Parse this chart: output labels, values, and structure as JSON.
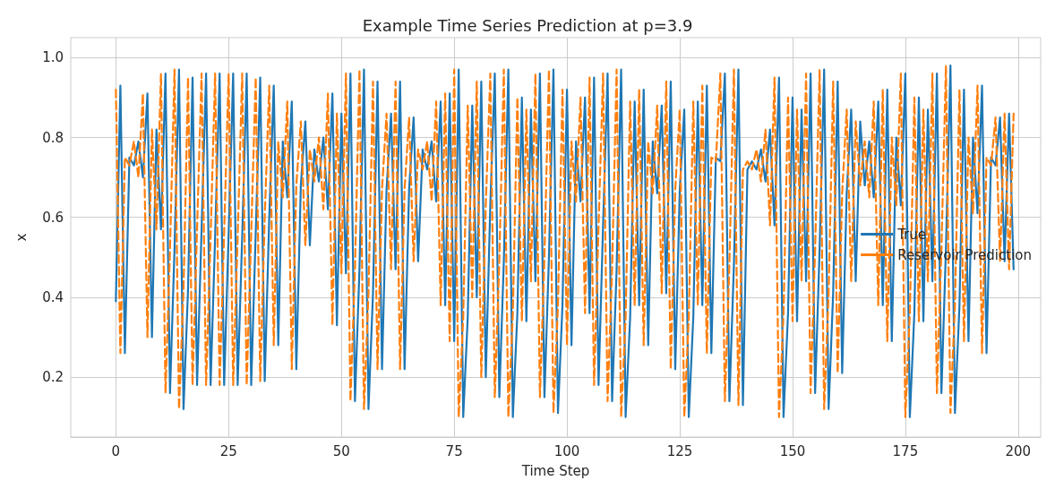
{
  "chart_data": {
    "type": "line",
    "title": "Example Time Series Prediction at p=3.9",
    "xlabel": "Time Step",
    "ylabel": "x",
    "x": [
      0,
      1,
      2,
      3,
      4,
      5,
      6,
      7,
      8,
      9,
      10,
      11,
      12,
      13,
      14,
      15,
      16,
      17,
      18,
      19,
      20,
      21,
      22,
      23,
      24,
      25,
      26,
      27,
      28,
      29,
      30,
      31,
      32,
      33,
      34,
      35,
      36,
      37,
      38,
      39,
      40,
      41,
      42,
      43,
      44,
      45,
      46,
      47,
      48,
      49,
      50,
      51,
      52,
      53,
      54,
      55,
      56,
      57,
      58,
      59,
      60,
      61,
      62,
      63,
      64,
      65,
      66,
      67,
      68,
      69,
      70,
      71,
      72,
      73,
      74,
      75,
      76,
      77,
      78,
      79,
      80,
      81,
      82,
      83,
      84,
      85,
      86,
      87,
      88,
      89,
      90,
      91,
      92,
      93,
      94,
      95,
      96,
      97,
      98,
      99,
      100,
      101,
      102,
      103,
      104,
      105,
      106,
      107,
      108,
      109,
      110,
      111,
      112,
      113,
      114,
      115,
      116,
      117,
      118,
      119,
      120,
      121,
      122,
      123,
      124,
      125,
      126,
      127,
      128,
      129,
      130,
      131,
      132,
      133,
      134,
      135,
      136,
      137,
      138,
      139,
      140,
      141,
      142,
      143,
      144,
      145,
      146,
      147,
      148,
      149,
      150,
      151,
      152,
      153,
      154,
      155,
      156,
      157,
      158,
      159,
      160,
      161,
      162,
      163,
      164,
      165,
      166,
      167,
      168,
      169,
      170,
      171,
      172,
      173,
      174,
      175,
      176,
      177,
      178,
      179,
      180,
      181,
      182,
      183,
      184,
      185,
      186,
      187,
      188,
      189,
      190,
      191,
      192,
      193,
      194,
      195,
      196,
      197,
      198,
      199
    ],
    "series": [
      {
        "name": "True",
        "color": "#1f77b4",
        "line_style": "solid",
        "values": [
          0.39,
          0.93,
          0.26,
          0.75,
          0.73,
          0.79,
          0.7,
          0.91,
          0.3,
          0.82,
          0.57,
          0.96,
          0.16,
          0.52,
          0.97,
          0.12,
          0.42,
          0.95,
          0.18,
          0.57,
          0.96,
          0.18,
          0.55,
          0.96,
          0.18,
          0.56,
          0.96,
          0.18,
          0.55,
          0.96,
          0.18,
          0.56,
          0.95,
          0.19,
          0.6,
          0.93,
          0.28,
          0.79,
          0.65,
          0.89,
          0.22,
          0.68,
          0.84,
          0.53,
          0.77,
          0.69,
          0.8,
          0.62,
          0.91,
          0.33,
          0.86,
          0.46,
          0.96,
          0.14,
          0.47,
          0.97,
          0.12,
          0.41,
          0.94,
          0.22,
          0.67,
          0.86,
          0.47,
          0.94,
          0.22,
          0.67,
          0.85,
          0.49,
          0.77,
          0.72,
          0.79,
          0.64,
          0.89,
          0.38,
          0.91,
          0.29,
          0.97,
          0.1,
          0.35,
          0.88,
          0.4,
          0.94,
          0.2,
          0.63,
          0.96,
          0.15,
          0.49,
          0.97,
          0.1,
          0.36,
          0.9,
          0.34,
          0.87,
          0.44,
          0.96,
          0.15,
          0.5,
          0.97,
          0.11,
          0.38,
          0.92,
          0.28,
          0.79,
          0.64,
          0.9,
          0.36,
          0.95,
          0.18,
          0.58,
          0.96,
          0.14,
          0.47,
          0.97,
          0.1,
          0.35,
          0.89,
          0.38,
          0.92,
          0.28,
          0.79,
          0.66,
          0.88,
          0.41,
          0.94,
          0.22,
          0.67,
          0.87,
          0.1,
          0.35,
          0.89,
          0.38,
          0.93,
          0.26,
          0.75,
          0.74,
          0.96,
          0.14,
          0.48,
          0.97,
          0.13,
          0.72,
          0.74,
          0.72,
          0.77,
          0.69,
          0.82,
          0.58,
          0.95,
          0.1,
          0.36,
          0.9,
          0.34,
          0.87,
          0.44,
          0.96,
          0.16,
          0.52,
          0.97,
          0.12,
          0.41,
          0.94,
          0.21,
          0.66,
          0.87,
          0.44,
          0.84,
          0.68,
          0.79,
          0.65,
          0.89,
          0.38,
          0.92,
          0.29,
          0.8,
          0.63,
          0.96,
          0.1,
          0.36,
          0.9,
          0.34,
          0.87,
          0.44,
          0.96,
          0.16,
          0.52,
          0.98,
          0.11,
          0.38,
          0.92,
          0.29,
          0.8,
          0.61,
          0.93,
          0.26,
          0.75,
          0.73,
          0.85,
          0.49,
          0.86,
          0.47
        ]
      },
      {
        "name": "Reservoir Prediction",
        "color": "#ff7f0e",
        "line_style": "dashed",
        "values": [
          0.92,
          0.26,
          0.75,
          0.73,
          0.79,
          0.7,
          0.91,
          0.3,
          0.82,
          0.57,
          0.96,
          0.16,
          0.52,
          0.97,
          0.12,
          0.42,
          0.95,
          0.18,
          0.57,
          0.96,
          0.18,
          0.55,
          0.96,
          0.18,
          0.56,
          0.96,
          0.18,
          0.55,
          0.96,
          0.18,
          0.56,
          0.95,
          0.19,
          0.6,
          0.93,
          0.28,
          0.79,
          0.65,
          0.89,
          0.22,
          0.68,
          0.84,
          0.53,
          0.77,
          0.69,
          0.8,
          0.62,
          0.91,
          0.33,
          0.86,
          0.46,
          0.96,
          0.14,
          0.47,
          0.97,
          0.12,
          0.41,
          0.94,
          0.22,
          0.67,
          0.86,
          0.47,
          0.94,
          0.22,
          0.67,
          0.85,
          0.49,
          0.77,
          0.72,
          0.79,
          0.64,
          0.89,
          0.38,
          0.91,
          0.29,
          0.97,
          0.1,
          0.35,
          0.88,
          0.4,
          0.94,
          0.2,
          0.63,
          0.96,
          0.15,
          0.49,
          0.97,
          0.1,
          0.36,
          0.9,
          0.34,
          0.87,
          0.44,
          0.96,
          0.15,
          0.5,
          0.97,
          0.11,
          0.38,
          0.92,
          0.28,
          0.79,
          0.64,
          0.9,
          0.36,
          0.95,
          0.18,
          0.58,
          0.96,
          0.14,
          0.47,
          0.97,
          0.1,
          0.35,
          0.89,
          0.38,
          0.92,
          0.28,
          0.79,
          0.66,
          0.88,
          0.41,
          0.94,
          0.22,
          0.67,
          0.87,
          0.1,
          0.35,
          0.89,
          0.38,
          0.93,
          0.26,
          0.75,
          0.74,
          0.96,
          0.14,
          0.48,
          0.97,
          0.13,
          0.72,
          0.74,
          0.72,
          0.77,
          0.69,
          0.82,
          0.58,
          0.95,
          0.1,
          0.36,
          0.9,
          0.34,
          0.87,
          0.44,
          0.96,
          0.16,
          0.52,
          0.97,
          0.12,
          0.41,
          0.94,
          0.21,
          0.66,
          0.87,
          0.44,
          0.84,
          0.68,
          0.79,
          0.65,
          0.89,
          0.38,
          0.92,
          0.29,
          0.8,
          0.63,
          0.96,
          0.1,
          0.36,
          0.9,
          0.34,
          0.87,
          0.44,
          0.96,
          0.16,
          0.52,
          0.98,
          0.11,
          0.38,
          0.92,
          0.29,
          0.8,
          0.61,
          0.93,
          0.26,
          0.75,
          0.73,
          0.85,
          0.49,
          0.86,
          0.47,
          0.86
        ]
      }
    ],
    "xlim": [
      -10,
      205
    ],
    "xticks": [
      0,
      25,
      50,
      75,
      100,
      125,
      150,
      175,
      200
    ],
    "ylim": [
      0.05,
      1.05
    ],
    "yticks": [
      0.2,
      0.4,
      0.6,
      0.8,
      {
        "value": 1,
        "label": "1.0"
      }
    ],
    "grid": true,
    "legend": "right",
    "marker": "none"
  }
}
